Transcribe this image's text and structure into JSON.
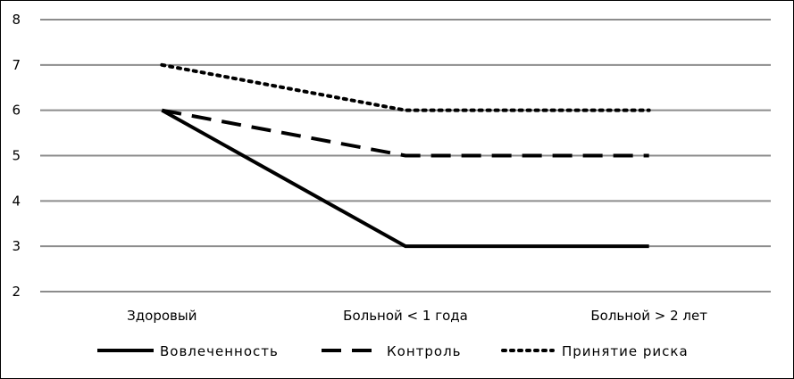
{
  "chart_data": {
    "type": "line",
    "title": "",
    "xlabel": "",
    "ylabel": "",
    "categories": [
      "Здоровый",
      "Больной < 1 года",
      "Больной > 2 лет"
    ],
    "ylim": [
      2,
      8
    ],
    "yticks": [
      2,
      3,
      4,
      5,
      6,
      7,
      8
    ],
    "grid": true,
    "legend_position": "bottom",
    "series": [
      {
        "name": "Вовлеченность",
        "values": [
          6,
          3,
          3
        ],
        "style": "solid",
        "color": "#000000"
      },
      {
        "name": "Контроль",
        "values": [
          6,
          5,
          5
        ],
        "style": "dashed",
        "color": "#000000"
      },
      {
        "name": "Принятие риска",
        "values": [
          7,
          6,
          6
        ],
        "style": "dotted",
        "color": "#000000"
      }
    ]
  }
}
